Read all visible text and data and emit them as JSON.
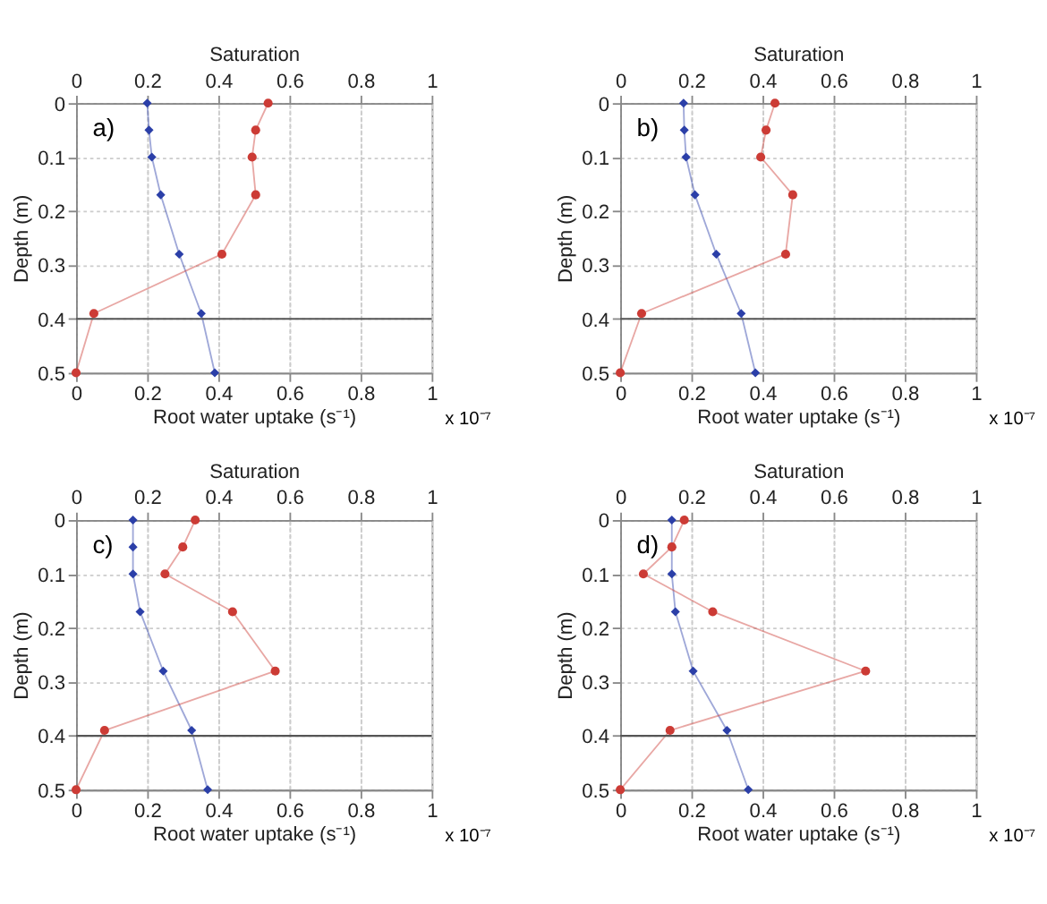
{
  "chart_data": [
    {
      "type": "line",
      "title": null,
      "xlabel": "Root water uptake (s⁻¹)",
      "x2label": "Saturation",
      "ylabel": "Depth (m)",
      "xlim": [
        0,
        1
      ],
      "xticks": [
        0,
        0.2,
        0.4,
        0.6,
        0.8,
        1
      ],
      "x2lim": [
        0,
        1
      ],
      "x2ticks": [
        0,
        0.2,
        0.4,
        0.6,
        0.8,
        1
      ],
      "ylim": [
        0.5,
        0
      ],
      "yticks": [
        0,
        0.1,
        0.2,
        0.3,
        0.4,
        0.5
      ],
      "grid": true,
      "annotations": [
        "a)",
        "x 10⁻⁷"
      ],
      "ref_lines": [
        {
          "axis": "y",
          "value": 0.4,
          "label": null,
          "color": "#555555"
        }
      ],
      "series": [
        {
          "color": "#2b3fa8",
          "axis": "x2",
          "marker": "diamond",
          "x": [
            0.2,
            0.205,
            0.213,
            0.238,
            0.29,
            0.352,
            0.39
          ],
          "values": [
            0,
            0.05,
            0.1,
            0.17,
            0.28,
            0.39,
            0.5
          ]
        },
        {
          "color": "#cc3b35",
          "marker": "circle",
          "x": [
            0.54,
            0.505,
            0.495,
            0.505,
            0.41,
            0.05,
            0
          ],
          "values": [
            0,
            0.05,
            0.1,
            0.17,
            0.28,
            0.39,
            0.5
          ]
        }
      ]
    },
    {
      "type": "line",
      "xlabel": "Root water uptake (s⁻¹)",
      "x2label": "Saturation",
      "ylabel": "Depth (m)",
      "xlim": [
        0,
        1
      ],
      "xticks": [
        0,
        0.2,
        0.4,
        0.6,
        0.8,
        1
      ],
      "x2lim": [
        0,
        1
      ],
      "x2ticks": [
        0,
        0.2,
        0.4,
        0.6,
        0.8,
        1
      ],
      "ylim": [
        0.5,
        0
      ],
      "yticks": [
        0,
        0.1,
        0.2,
        0.3,
        0.4,
        0.5
      ],
      "grid": true,
      "annotations": [
        "b)",
        "x 10⁻⁷"
      ],
      "ref_lines": [
        {
          "axis": "y",
          "value": 0.4,
          "label": null,
          "color": "#555555"
        }
      ],
      "series": [
        {
          "color": "#2b3fa8",
          "axis": "x2",
          "marker": "diamond",
          "x": [
            0.178,
            0.18,
            0.185,
            0.21,
            0.27,
            0.34,
            0.38
          ],
          "values": [
            0,
            0.05,
            0.1,
            0.17,
            0.28,
            0.39,
            0.5
          ]
        },
        {
          "color": "#cc3b35",
          "marker": "circle",
          "x": [
            0.435,
            0.41,
            0.395,
            0.485,
            0.465,
            0.06,
            0
          ],
          "values": [
            0,
            0.05,
            0.1,
            0.17,
            0.28,
            0.39,
            0.5
          ]
        }
      ]
    },
    {
      "type": "line",
      "xlabel": "Root water uptake (s⁻¹)",
      "x2label": "Saturation",
      "ylabel": "Depth (m)",
      "xlim": [
        0,
        1
      ],
      "xticks": [
        0,
        0.2,
        0.4,
        0.6,
        0.8,
        1
      ],
      "x2lim": [
        0,
        1
      ],
      "x2ticks": [
        0,
        0.2,
        0.4,
        0.6,
        0.8,
        1
      ],
      "ylim": [
        0.5,
        0
      ],
      "yticks": [
        0,
        0.1,
        0.2,
        0.3,
        0.4,
        0.5
      ],
      "grid": true,
      "annotations": [
        "c)",
        "x 10⁻⁷"
      ],
      "ref_lines": [
        {
          "axis": "y",
          "value": 0.4,
          "label": null,
          "color": "#555555"
        }
      ],
      "series": [
        {
          "color": "#2b3fa8",
          "axis": "x2",
          "marker": "diamond",
          "x": [
            0.16,
            0.16,
            0.16,
            0.18,
            0.245,
            0.325,
            0.37
          ],
          "values": [
            0,
            0.05,
            0.1,
            0.17,
            0.28,
            0.39,
            0.5
          ]
        },
        {
          "color": "#cc3b35",
          "marker": "circle",
          "x": [
            0.335,
            0.3,
            0.25,
            0.44,
            0.56,
            0.08,
            0
          ],
          "values": [
            0,
            0.05,
            0.1,
            0.17,
            0.28,
            0.39,
            0.5
          ]
        }
      ]
    },
    {
      "type": "line",
      "xlabel": "Root water uptake (s⁻¹)",
      "x2label": "Saturation",
      "ylabel": "Depth (m)",
      "xlim": [
        0,
        1
      ],
      "xticks": [
        0,
        0.2,
        0.4,
        0.6,
        0.8,
        1
      ],
      "x2lim": [
        0,
        1
      ],
      "x2ticks": [
        0,
        0.2,
        0.4,
        0.6,
        0.8,
        1
      ],
      "ylim": [
        0.5,
        0
      ],
      "yticks": [
        0,
        0.1,
        0.2,
        0.3,
        0.4,
        0.5
      ],
      "grid": true,
      "annotations": [
        "d)",
        "x 10⁻⁷"
      ],
      "ref_lines": [
        {
          "axis": "y",
          "value": 0.4,
          "label": null,
          "color": "#555555"
        }
      ],
      "series": [
        {
          "color": "#2b3fa8",
          "axis": "x2",
          "marker": "diamond",
          "x": [
            0.145,
            0.145,
            0.145,
            0.155,
            0.205,
            0.3,
            0.36
          ],
          "values": [
            0,
            0.05,
            0.1,
            0.17,
            0.28,
            0.39,
            0.5
          ]
        },
        {
          "color": "#cc3b35",
          "marker": "circle",
          "x": [
            0.18,
            0.145,
            0.065,
            0.26,
            0.69,
            0.14,
            0
          ],
          "values": [
            0,
            0.05,
            0.1,
            0.17,
            0.28,
            0.39,
            0.5
          ]
        }
      ]
    }
  ]
}
